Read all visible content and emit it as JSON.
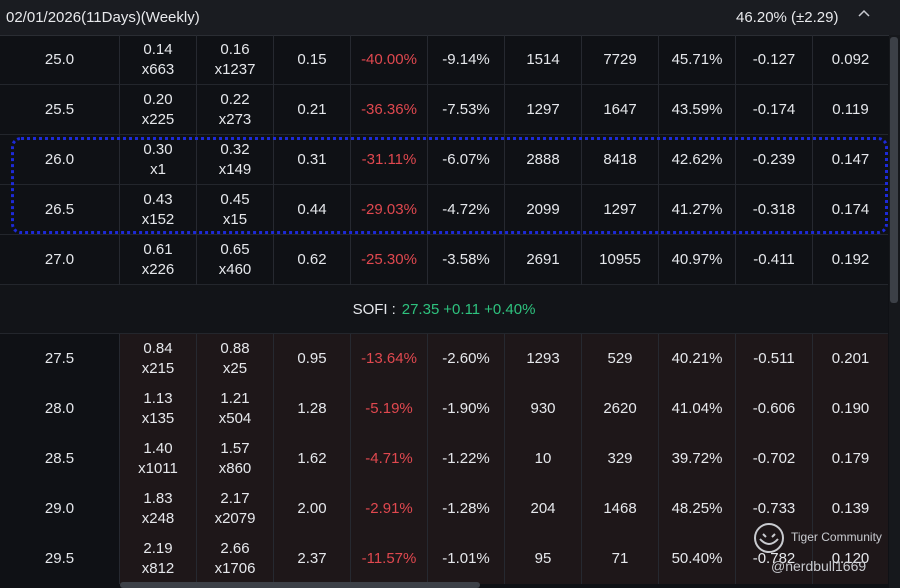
{
  "header": {
    "title": "02/01/2026(11Days)(Weekly)",
    "iv": "46.20% (±2.29)",
    "collapse_icon": "chevron-up-icon"
  },
  "spot": {
    "symbol": "SOFI",
    "separator": ":",
    "price": "27.35",
    "change": "+0.11",
    "change_pct": "+0.40%"
  },
  "rows_above": [
    {
      "strike": "25.0",
      "bid": "0.14",
      "bid_size": "x663",
      "ask": "0.16",
      "ask_size": "x1237",
      "last": "0.15",
      "chg_pct": "-40.00%",
      "chg2": "-9.14%",
      "vol": "1514",
      "oi": "7729",
      "iv": "45.71%",
      "delta": "-0.127",
      "gamma": "0.092"
    },
    {
      "strike": "25.5",
      "bid": "0.20",
      "bid_size": "x225",
      "ask": "0.22",
      "ask_size": "x273",
      "last": "0.21",
      "chg_pct": "-36.36%",
      "chg2": "-7.53%",
      "vol": "1297",
      "oi": "1647",
      "iv": "43.59%",
      "delta": "-0.174",
      "gamma": "0.119"
    },
    {
      "strike": "26.0",
      "bid": "0.30",
      "bid_size": "x1",
      "ask": "0.32",
      "ask_size": "x149",
      "last": "0.31",
      "chg_pct": "-31.11%",
      "chg2": "-6.07%",
      "vol": "2888",
      "oi": "8418",
      "iv": "42.62%",
      "delta": "-0.239",
      "gamma": "0.147"
    },
    {
      "strike": "26.5",
      "bid": "0.43",
      "bid_size": "x152",
      "ask": "0.45",
      "ask_size": "x15",
      "last": "0.44",
      "chg_pct": "-29.03%",
      "chg2": "-4.72%",
      "vol": "2099",
      "oi": "1297",
      "iv": "41.27%",
      "delta": "-0.318",
      "gamma": "0.174"
    },
    {
      "strike": "27.0",
      "bid": "0.61",
      "bid_size": "x226",
      "ask": "0.65",
      "ask_size": "x460",
      "last": "0.62",
      "chg_pct": "-25.30%",
      "chg2": "-3.58%",
      "vol": "2691",
      "oi": "10955",
      "iv": "40.97%",
      "delta": "-0.411",
      "gamma": "0.192"
    }
  ],
  "rows_below": [
    {
      "strike": "27.5",
      "bid": "0.84",
      "bid_size": "x215",
      "ask": "0.88",
      "ask_size": "x25",
      "last": "0.95",
      "chg_pct": "-13.64%",
      "chg2": "-2.60%",
      "vol": "1293",
      "oi": "529",
      "iv": "40.21%",
      "delta": "-0.511",
      "gamma": "0.201"
    },
    {
      "strike": "28.0",
      "bid": "1.13",
      "bid_size": "x135",
      "ask": "1.21",
      "ask_size": "x504",
      "last": "1.28",
      "chg_pct": "-5.19%",
      "chg2": "-1.90%",
      "vol": "930",
      "oi": "2620",
      "iv": "41.04%",
      "delta": "-0.606",
      "gamma": "0.190"
    },
    {
      "strike": "28.5",
      "bid": "1.40",
      "bid_size": "x1011",
      "ask": "1.57",
      "ask_size": "x860",
      "last": "1.62",
      "chg_pct": "-4.71%",
      "chg2": "-1.22%",
      "vol": "10",
      "oi": "329",
      "iv": "39.72%",
      "delta": "-0.702",
      "gamma": "0.179"
    },
    {
      "strike": "29.0",
      "bid": "1.83",
      "bid_size": "x248",
      "ask": "2.17",
      "ask_size": "x2079",
      "last": "2.00",
      "chg_pct": "-2.91%",
      "chg2": "-1.28%",
      "vol": "204",
      "oi": "1468",
      "iv": "48.25%",
      "delta": "-0.733",
      "gamma": "0.139"
    },
    {
      "strike": "29.5",
      "bid": "2.19",
      "bid_size": "x812",
      "ask": "2.66",
      "ask_size": "x1706",
      "last": "2.37",
      "chg_pct": "-11.57%",
      "chg2": "-1.01%",
      "vol": "95",
      "oi": "71",
      "iv": "50.40%",
      "delta": "-0.782",
      "gamma": "0.120"
    }
  ],
  "watermark": {
    "brand": "Tiger Community",
    "handle": "@nerdbull1669",
    "logo_icon": "tiger-logo-icon"
  },
  "colors": {
    "background": "#0f1115",
    "itm_background": "#1b1d22",
    "negative": "#e0484f",
    "positive": "#2ec27e",
    "highlight_border": "#1d2ad8"
  }
}
